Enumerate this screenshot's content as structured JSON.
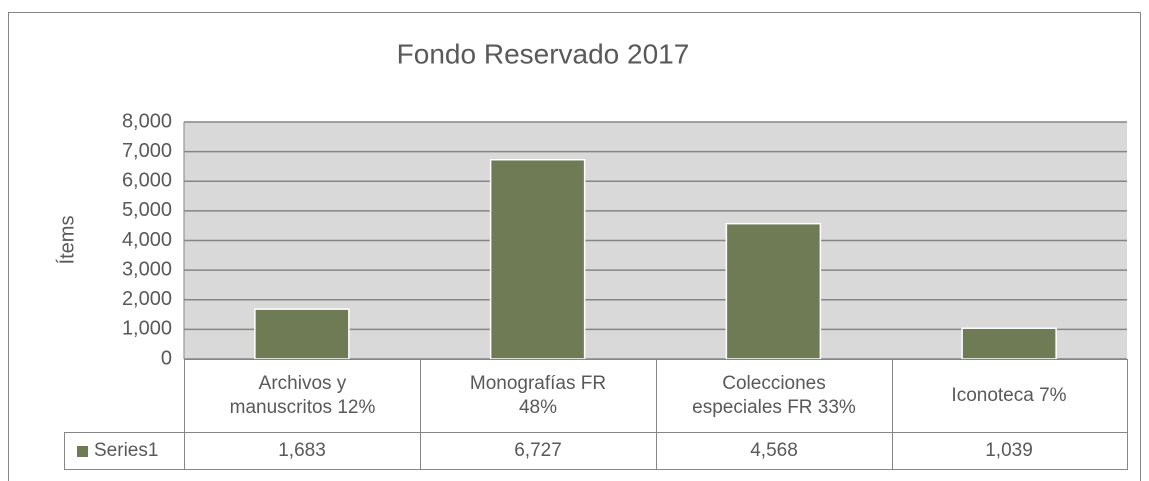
{
  "chart_data": {
    "type": "bar",
    "title": "Fondo Reservado 2017",
    "y_label": "Ítems",
    "categories": [
      "Archivos y manuscritos 12%",
      "Monografías FR 48%",
      "Colecciones especiales FR 33%",
      "Iconoteca 7%"
    ],
    "series": [
      {
        "name": "Series1",
        "color": "#6e7b55",
        "values": [
          1683,
          6727,
          4568,
          1039
        ],
        "value_labels": [
          "1,683",
          "6,727",
          "4,568",
          "1,039"
        ]
      }
    ],
    "ylim": [
      0,
      8000
    ],
    "yticks": [
      0,
      {
        "value": 1000,
        "label": "1,000"
      },
      {
        "value": 2000,
        "label": "2,000"
      },
      {
        "value": 3000,
        "label": "3,000"
      },
      {
        "value": 4000,
        "label": "4,000"
      },
      {
        "value": 5000,
        "label": "5,000"
      },
      {
        "value": 6000,
        "label": "6,000"
      },
      {
        "value": 7000,
        "label": "7,000"
      },
      {
        "value": 8000,
        "label": "8,000"
      }
    ],
    "grid": true
  }
}
